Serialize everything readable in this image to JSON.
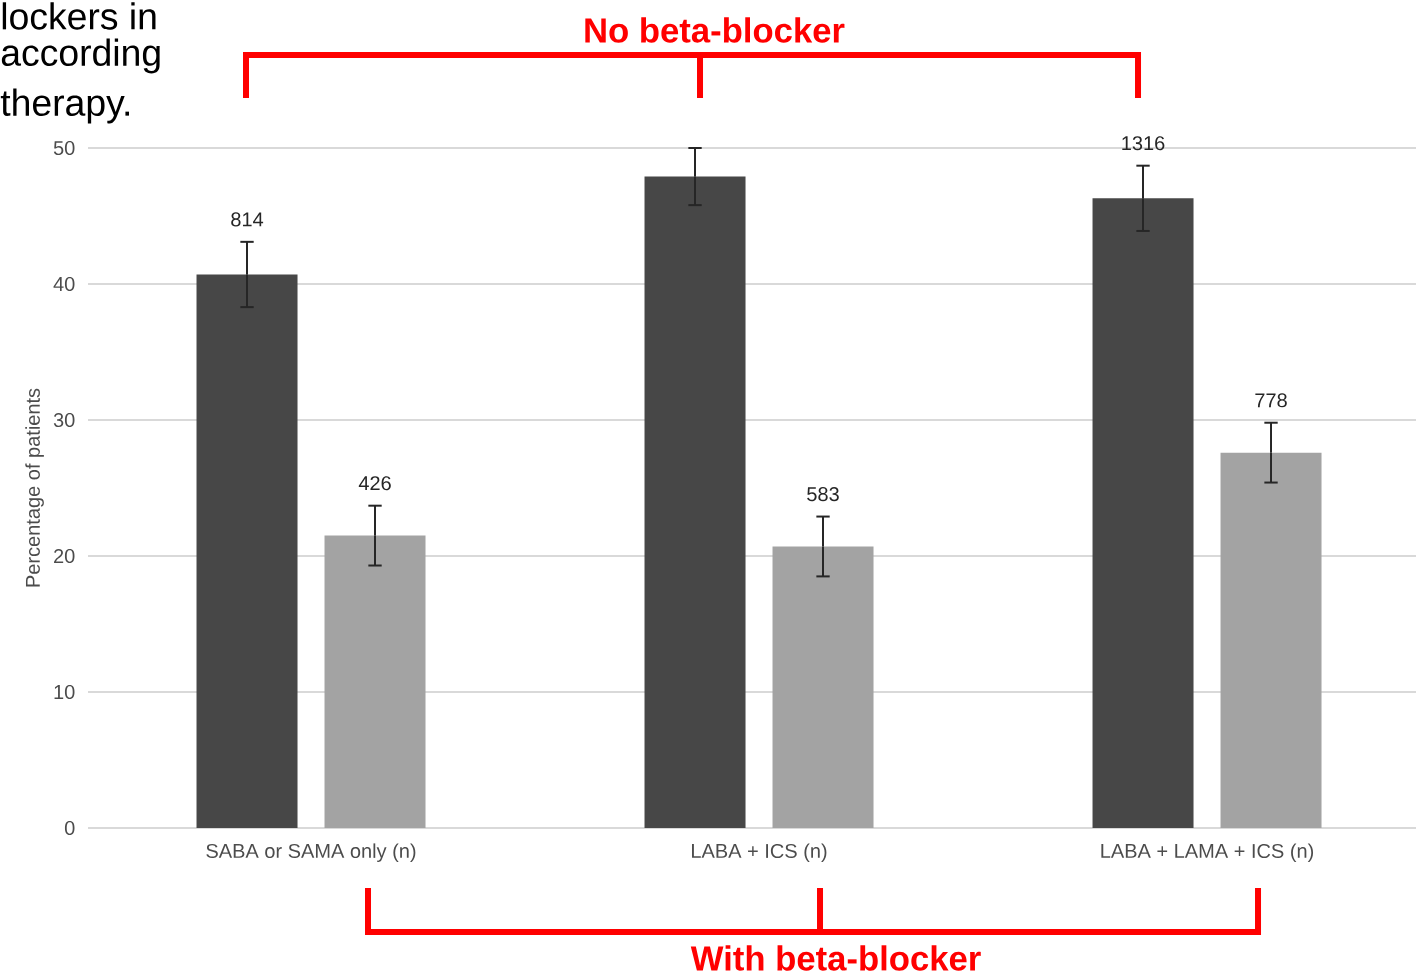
{
  "chart_data": {
    "type": "bar",
    "ylabel": "Percentage of patients",
    "categories": [
      "SABA or SAMA only (n)",
      "LABA + ICS (n)",
      "LABA + LAMA + ICS (n)"
    ],
    "series": [
      {
        "color": "#474747",
        "values": [
          40.7,
          47.9,
          46.3
        ],
        "errors": [
          2.4,
          2.1,
          2.4
        ]
      },
      {
        "color": "#a3a3a3",
        "values": [
          21.5,
          20.7,
          27.6
        ],
        "errors": [
          2.2,
          2.2,
          2.2
        ]
      }
    ],
    "ylim": [
      0,
      50
    ],
    "yticks": [
      0,
      10,
      20,
      30,
      40,
      50
    ],
    "grid": "y",
    "annotations": [
      "No beta-blocker",
      "With beta-blocker",
      "lockers in",
      "according",
      "therapy.",
      "814",
      "1316",
      "426",
      "583",
      "778"
    ]
  }
}
